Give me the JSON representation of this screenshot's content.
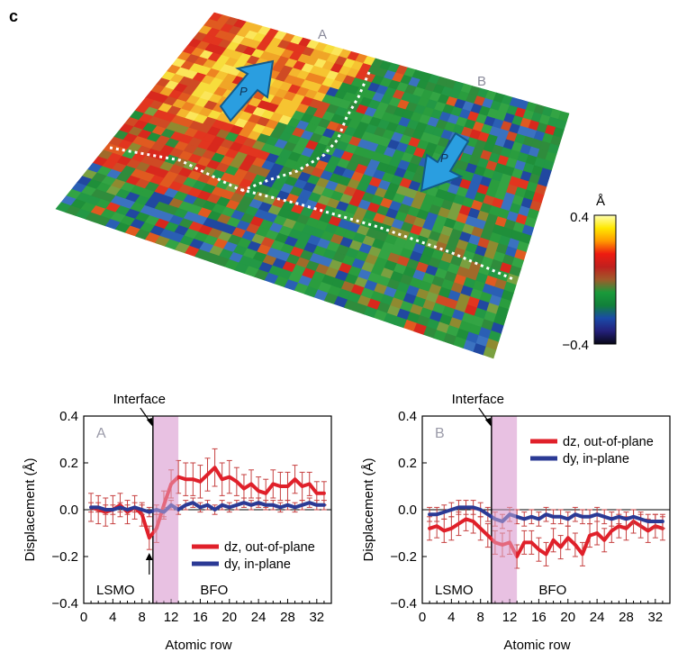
{
  "panel_label": "c",
  "map": {
    "label_A": "A",
    "label_B": "B",
    "arrow_label_A": "P",
    "arrow_label_B": "P",
    "colorbar_unit": "Å",
    "colorbar_max": "0.4",
    "colorbar_min": "−0.4",
    "colorbar_colors": [
      "#ffffb0",
      "#ffe800",
      "#ff9a00",
      "#ee1b10",
      "#c0201e",
      "#a05a2a",
      "#1a9a3a",
      "#11803a",
      "#1a4aa8",
      "#24207a",
      "#080818"
    ]
  },
  "colors": {
    "dz": "#e0202a",
    "dy": "#2b3a95",
    "interface_band": "#e8c2e2",
    "error_bar": "#c64040"
  },
  "chart_data": [
    {
      "type": "line",
      "panel": "A",
      "xlabel": "Atomic row",
      "ylabel": "Displacement (Å)",
      "xlim": [
        0,
        34
      ],
      "ylim": [
        -0.4,
        0.4
      ],
      "xticks": [
        "0",
        "4",
        "8",
        "12",
        "16",
        "20",
        "24",
        "28",
        "32"
      ],
      "yticks": [
        "−0.4",
        "−0.2",
        "0.0",
        "0.2",
        "0.4"
      ],
      "interface_label": "Interface",
      "interface_x": 9.5,
      "band": [
        9.5,
        13
      ],
      "region_left": "LSMO",
      "region_right": "BFO",
      "grid": false,
      "legend_position": "bottom-right",
      "x": [
        1,
        2,
        3,
        4,
        5,
        6,
        7,
        8,
        9,
        10,
        11,
        12,
        13,
        14,
        15,
        16,
        17,
        18,
        19,
        20,
        21,
        22,
        23,
        24,
        25,
        26,
        27,
        28,
        29,
        30,
        31,
        32,
        33
      ],
      "series": [
        {
          "name": "dz, out-of-plane",
          "values": [
            0.01,
            0.0,
            -0.01,
            0.0,
            0.02,
            -0.01,
            0.01,
            -0.02,
            -0.12,
            -0.08,
            0.02,
            0.11,
            0.14,
            0.13,
            0.13,
            0.12,
            0.15,
            0.18,
            0.13,
            0.14,
            0.12,
            0.09,
            0.11,
            0.08,
            0.07,
            0.11,
            0.1,
            0.1,
            0.13,
            0.1,
            0.11,
            0.07,
            0.07
          ],
          "errors": [
            0.06,
            0.06,
            0.06,
            0.06,
            0.05,
            0.05,
            0.05,
            0.05,
            0.05,
            0.06,
            0.06,
            0.06,
            0.07,
            0.07,
            0.07,
            0.07,
            0.07,
            0.08,
            0.07,
            0.07,
            0.06,
            0.06,
            0.06,
            0.06,
            0.06,
            0.06,
            0.06,
            0.06,
            0.06,
            0.06,
            0.05,
            0.05,
            0.05
          ]
        },
        {
          "name": "dy, in-plane",
          "values": [
            0.01,
            0.01,
            0.0,
            0.0,
            0.01,
            0.0,
            0.01,
            0.0,
            -0.01,
            0.0,
            -0.01,
            0.02,
            0.0,
            0.02,
            0.03,
            0.01,
            0.02,
            0.0,
            0.02,
            0.01,
            0.02,
            0.03,
            0.02,
            0.03,
            0.02,
            0.02,
            0.01,
            0.02,
            0.01,
            0.02,
            0.03,
            0.02,
            0.02
          ],
          "errors": [
            0.02,
            0.02,
            0.02,
            0.02,
            0.02,
            0.02,
            0.02,
            0.02,
            0.02,
            0.02,
            0.02,
            0.02,
            0.02,
            0.02,
            0.02,
            0.02,
            0.02,
            0.02,
            0.02,
            0.02,
            0.02,
            0.02,
            0.02,
            0.02,
            0.02,
            0.02,
            0.02,
            0.02,
            0.02,
            0.02,
            0.02,
            0.02,
            0.02
          ]
        }
      ]
    },
    {
      "type": "line",
      "panel": "B",
      "xlabel": "Atomic row",
      "ylabel": "Displacement (Å)",
      "xlim": [
        0,
        34
      ],
      "ylim": [
        -0.4,
        0.4
      ],
      "xticks": [
        "0",
        "4",
        "8",
        "12",
        "16",
        "20",
        "24",
        "28",
        "32"
      ],
      "yticks": [
        "−0.4",
        "−0.2",
        "0.0",
        "0.2",
        "0.4"
      ],
      "interface_label": "Interface",
      "interface_x": 9.5,
      "band": [
        9.5,
        13
      ],
      "region_left": "LSMO",
      "region_right": "BFO",
      "grid": false,
      "legend_position": "top-right",
      "x": [
        1,
        2,
        3,
        4,
        5,
        6,
        7,
        8,
        9,
        10,
        11,
        12,
        13,
        14,
        15,
        16,
        17,
        18,
        19,
        20,
        21,
        22,
        23,
        24,
        25,
        26,
        27,
        28,
        29,
        30,
        31,
        32,
        33
      ],
      "series": [
        {
          "name": "dz, out-of-plane",
          "values": [
            -0.08,
            -0.07,
            -0.09,
            -0.08,
            -0.06,
            -0.04,
            -0.05,
            -0.08,
            -0.11,
            -0.14,
            -0.15,
            -0.14,
            -0.2,
            -0.14,
            -0.14,
            -0.17,
            -0.19,
            -0.13,
            -0.16,
            -0.12,
            -0.15,
            -0.19,
            -0.11,
            -0.1,
            -0.13,
            -0.09,
            -0.07,
            -0.08,
            -0.05,
            -0.07,
            -0.09,
            -0.07,
            -0.08
          ],
          "errors": [
            0.05,
            0.05,
            0.05,
            0.05,
            0.05,
            0.05,
            0.05,
            0.05,
            0.05,
            0.05,
            0.05,
            0.05,
            0.05,
            0.05,
            0.05,
            0.05,
            0.05,
            0.05,
            0.05,
            0.05,
            0.05,
            0.05,
            0.05,
            0.05,
            0.05,
            0.05,
            0.05,
            0.05,
            0.05,
            0.05,
            0.05,
            0.05,
            0.05
          ]
        },
        {
          "name": "dy, in-plane",
          "values": [
            -0.02,
            -0.02,
            -0.01,
            0.0,
            0.01,
            0.01,
            0.01,
            0.0,
            -0.02,
            -0.04,
            -0.05,
            -0.02,
            -0.03,
            -0.04,
            -0.03,
            -0.04,
            -0.02,
            -0.03,
            -0.03,
            -0.04,
            -0.02,
            -0.03,
            -0.03,
            -0.02,
            -0.03,
            -0.04,
            -0.03,
            -0.04,
            -0.03,
            -0.04,
            -0.05,
            -0.05,
            -0.05
          ],
          "errors": [
            0.03,
            0.03,
            0.03,
            0.03,
            0.03,
            0.03,
            0.03,
            0.03,
            0.03,
            0.03,
            0.03,
            0.03,
            0.03,
            0.03,
            0.03,
            0.03,
            0.03,
            0.03,
            0.03,
            0.03,
            0.03,
            0.03,
            0.03,
            0.03,
            0.03,
            0.03,
            0.03,
            0.03,
            0.03,
            0.03,
            0.03,
            0.03,
            0.03
          ]
        }
      ]
    }
  ]
}
